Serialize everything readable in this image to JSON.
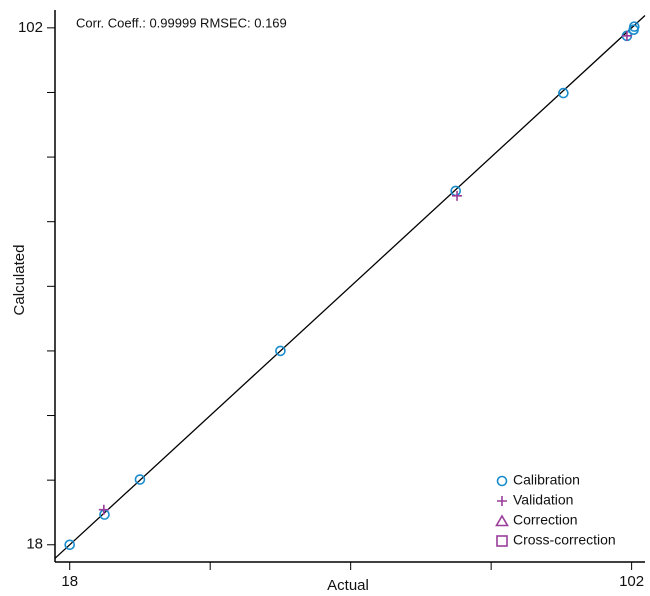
{
  "chart_data": {
    "type": "scatter",
    "annotation": "Corr. Coeff.: 0.99999 RMSEC: 0.169",
    "x_label": "Actual",
    "y_label": "Calculated",
    "xlim": [
      15.8,
      104
    ],
    "ylim": [
      15.2,
      104.9
    ],
    "xticks": [
      18,
      102
    ],
    "x_minor_ticks": [
      39,
      60,
      81
    ],
    "yticks": [
      18,
      102
    ],
    "y_minor_ticks": [
      28.5,
      39,
      49.5,
      60,
      70.5,
      81,
      91.5
    ],
    "identity_line": true,
    "legend_position": "lower right",
    "series": [
      {
        "name": "Calibration",
        "marker": "circle",
        "color": "#1a8ccc",
        "x": [
          18,
          23.2,
          28.5,
          49.5,
          75.7,
          91.8,
          101.3,
          102.3,
          102.4
        ],
        "values": [
          18,
          22.9,
          28.6,
          49.5,
          75.5,
          91.4,
          100.7,
          101.7,
          102.2
        ]
      },
      {
        "name": "Validation",
        "marker": "plus",
        "color": "#9a3d9a",
        "x": [
          23.1,
          75.9,
          101.3
        ],
        "values": [
          23.7,
          74.7,
          100.7
        ]
      },
      {
        "name": "Correction",
        "marker": "triangle",
        "color": "#9a3d9a",
        "x": [],
        "values": []
      },
      {
        "name": "Cross-correction",
        "marker": "square",
        "color": "#9a3d9a",
        "x": [],
        "values": []
      }
    ]
  }
}
